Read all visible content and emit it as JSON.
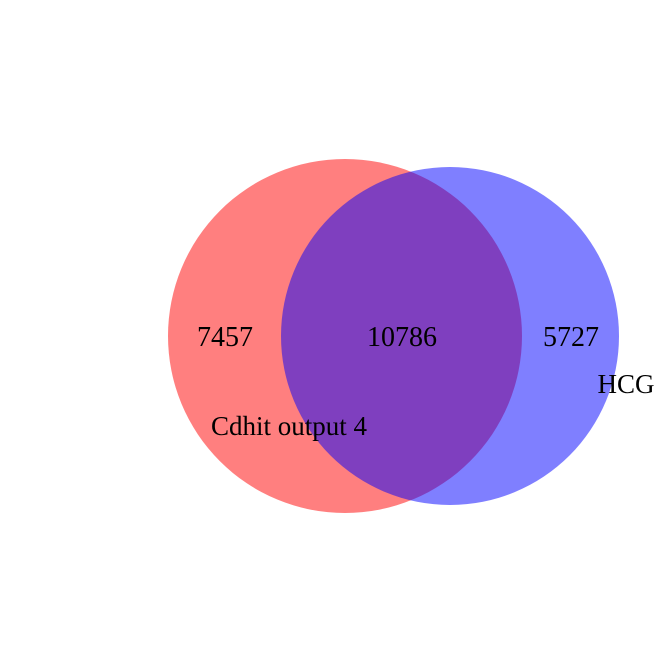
{
  "chart_data": {
    "type": "venn",
    "sets": [
      {
        "name": "Cdhit output 4",
        "color": "#ff0000",
        "opacity": 0.5
      },
      {
        "name": "HCG",
        "color": "#0000ff",
        "opacity": 0.5
      }
    ],
    "counts": {
      "left_only": "7457",
      "intersection": "10786",
      "right_only": "5727"
    }
  }
}
